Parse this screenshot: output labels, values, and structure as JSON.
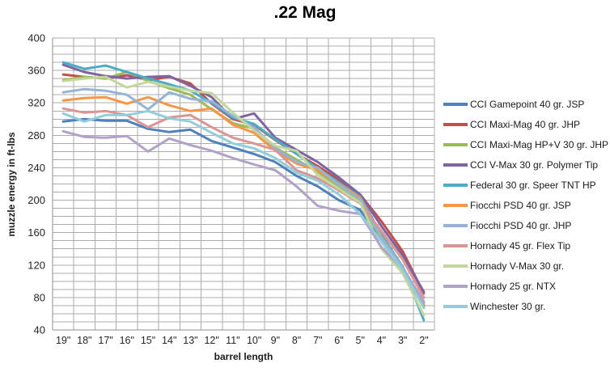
{
  "title": ".22 Mag",
  "chart_data": {
    "type": "line",
    "title": ".22 Mag",
    "xlabel": "barrel length",
    "ylabel": "muzzle energy in ft-lbs",
    "ylim": [
      40,
      400
    ],
    "y_major_step": 40,
    "y_minor_step": 10,
    "grid": true,
    "legend_position": "right",
    "grid_color": "#ACACAC",
    "axis_color": "#8C8C8C",
    "tick_text_color": "#262626",
    "categories": [
      "19\"",
      "18\"",
      "17\"",
      "16\"",
      "15\"",
      "14\"",
      "13\"",
      "12\"",
      "11\"",
      "10\"",
      "9\"",
      "8\"",
      "7\"",
      "6\"",
      "5\"",
      "4\"",
      "3\"",
      "2\""
    ],
    "series": [
      {
        "name": "CCI Gamepoint 40 gr. JSP",
        "color": "#4F81BD",
        "values": [
          297,
          300,
          298,
          298,
          288,
          284,
          287,
          273,
          265,
          257,
          247,
          230,
          217,
          200,
          188,
          149,
          115,
          70
        ]
      },
      {
        "name": "CCI Maxi-Mag 40 gr. JHP",
        "color": "#C0504D",
        "values": [
          355,
          352,
          350,
          354,
          348,
          352,
          344,
          319,
          300,
          293,
          274,
          257,
          242,
          225,
          207,
          174,
          137,
          85
        ]
      },
      {
        "name": "CCI Maxi-Mag HP+V 30 gr. JHP",
        "color": "#9BBB59",
        "values": [
          348,
          352,
          350,
          358,
          347,
          338,
          330,
          312,
          295,
          288,
          265,
          250,
          235,
          217,
          199,
          152,
          118,
          68
        ]
      },
      {
        "name": "CCI V-Max  30 gr. Polymer Tip",
        "color": "#8064A2",
        "values": [
          367,
          358,
          353,
          350,
          352,
          353,
          341,
          327,
          300,
          307,
          277,
          262,
          247,
          228,
          207,
          168,
          132,
          87
        ]
      },
      {
        "name": "Federal 30 gr. Speer TNT  HP",
        "color": "#4BACC6",
        "values": [
          370,
          362,
          366,
          358,
          350,
          343,
          335,
          320,
          302,
          294,
          275,
          257,
          239,
          222,
          204,
          158,
          118,
          52
        ]
      },
      {
        "name": "Fiocchi PSD 40 gr. JSP",
        "color": "#F79646",
        "values": [
          323,
          326,
          327,
          319,
          327,
          317,
          310,
          313,
          293,
          283,
          261,
          245,
          237,
          220,
          203,
          155,
          117,
          72
        ]
      },
      {
        "name": "Fiocchi PSD 40 gr. JHP",
        "color": "#95B3D7",
        "values": [
          333,
          337,
          335,
          330,
          312,
          333,
          325,
          322,
          304,
          290,
          264,
          247,
          240,
          219,
          201,
          154,
          117,
          75
        ]
      },
      {
        "name": "Hornady 45 gr. Flex Tip",
        "color": "#D99694",
        "values": [
          313,
          308,
          310,
          305,
          290,
          302,
          305,
          290,
          277,
          270,
          262,
          237,
          227,
          212,
          196,
          162,
          127,
          80
        ]
      },
      {
        "name": "Hornady V-Max  30 gr.",
        "color": "#C3D69B",
        "values": [
          347,
          350,
          352,
          339,
          346,
          340,
          335,
          332,
          308,
          286,
          267,
          261,
          231,
          214,
          197,
          140,
          110,
          58
        ]
      },
      {
        "name": "Hornady 25 gr. NTX",
        "color": "#B3A2C7",
        "values": [
          285,
          278,
          277,
          279,
          260,
          276,
          268,
          261,
          252,
          244,
          237,
          217,
          193,
          187,
          183,
          142,
          115,
          74
        ]
      },
      {
        "name": "Winchester 30 gr.",
        "color": "#92CDDC",
        "values": [
          307,
          297,
          305,
          305,
          310,
          301,
          297,
          283,
          270,
          264,
          252,
          234,
          224,
          207,
          183,
          149,
          114,
          67
        ]
      }
    ]
  }
}
